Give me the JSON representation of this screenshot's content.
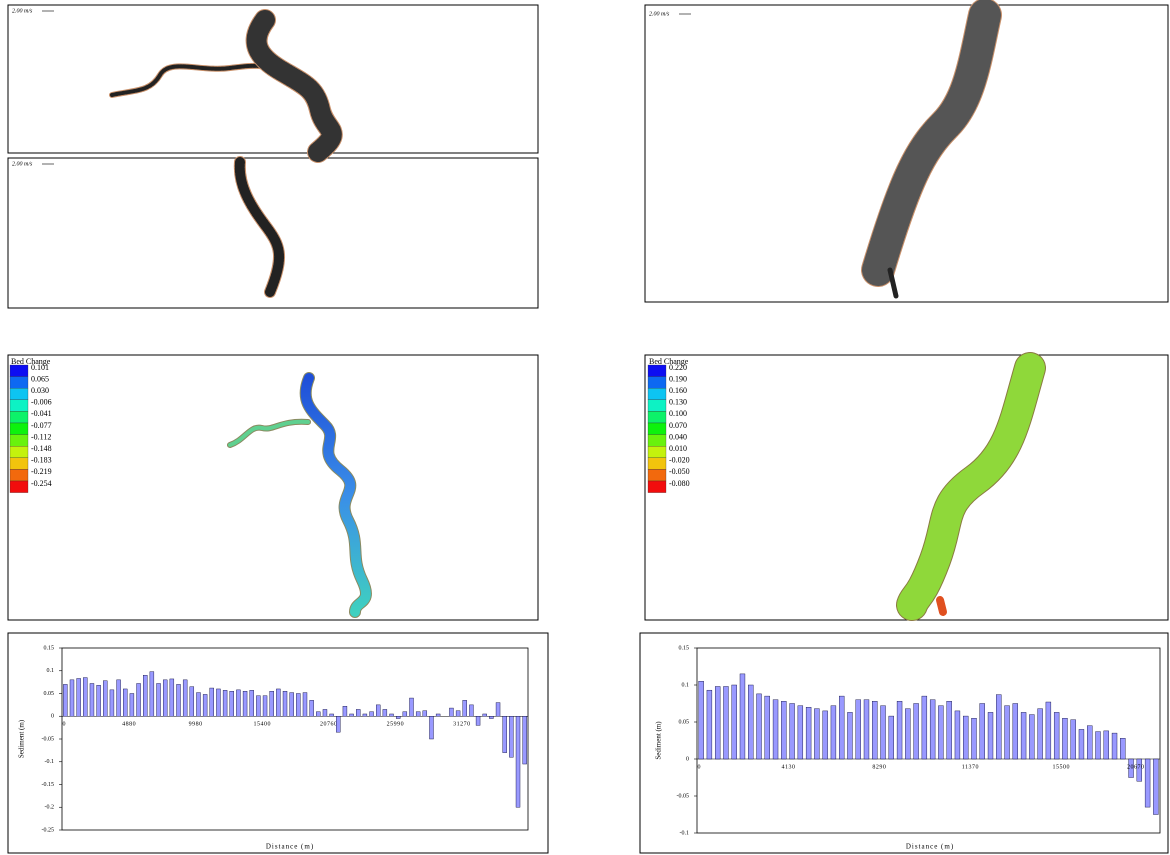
{
  "velocity_labels": [
    "2.00 m/s",
    "2.00 m/s",
    "2.00 m/s"
  ],
  "bed_change": [
    {
      "title": "Bed Change",
      "levels": [
        "0.101",
        "0.065",
        "0.030",
        "-0.006",
        "-0.041",
        "-0.077",
        "-0.112",
        "-0.148",
        "-0.183",
        "-0.219",
        "-0.254"
      ]
    },
    {
      "title": "Bed Change",
      "levels": [
        "0.220",
        "0.190",
        "0.160",
        "0.130",
        "0.100",
        "0.070",
        "0.040",
        "0.010",
        "-0.020",
        "-0.050",
        "-0.080"
      ]
    }
  ],
  "chart_data": [
    {
      "type": "bar",
      "y_label": "Sediment (m)",
      "x_label": "Distance (m)",
      "color": "#9999ff",
      "categories": [
        0,
        null,
        null,
        null,
        null,
        null,
        null,
        null,
        null,
        null,
        4880,
        null,
        null,
        null,
        null,
        null,
        null,
        null,
        null,
        null,
        9980,
        null,
        null,
        null,
        null,
        null,
        null,
        null,
        null,
        null,
        15400,
        null,
        null,
        null,
        null,
        null,
        null,
        null,
        null,
        null,
        20760,
        null,
        null,
        null,
        null,
        null,
        null,
        null,
        null,
        null,
        25990,
        null,
        null,
        null,
        null,
        null,
        null,
        null,
        null,
        null,
        31270,
        null,
        null,
        null,
        null,
        null,
        null,
        null,
        null,
        null
      ],
      "values": [
        0.07,
        0.08,
        0.083,
        0.085,
        0.072,
        0.068,
        0.078,
        0.058,
        0.08,
        0.06,
        0.05,
        0.072,
        0.09,
        0.098,
        0.072,
        0.08,
        0.082,
        0.07,
        0.08,
        0.065,
        0.052,
        0.048,
        0.062,
        0.06,
        0.057,
        0.055,
        0.058,
        0.055,
        0.057,
        0.045,
        0.045,
        0.055,
        0.06,
        0.055,
        0.052,
        0.05,
        0.052,
        0.035,
        0.01,
        0.015,
        0.005,
        -0.035,
        0.022,
        0.005,
        0.015,
        0.005,
        0.01,
        0.025,
        0.015,
        0.005,
        -0.005,
        0.01,
        0.04,
        0.01,
        0.012,
        -0.05,
        0.005,
        0,
        0.018,
        0.012,
        0.035,
        0.025,
        -0.02,
        0.005,
        -0.005,
        0.03,
        -0.08,
        -0.09,
        -0.2,
        -0.105
      ],
      "ylim": [
        -0.25,
        0.15
      ],
      "yticks": [
        0.15,
        0.1,
        0.05,
        0,
        -0.05,
        -0.1,
        -0.15,
        -0.2,
        -0.25
      ]
    },
    {
      "type": "bar",
      "y_label": "Sediment (m)",
      "x_label": "Distance (m)",
      "color": "#9999ff",
      "categories": [
        0,
        null,
        null,
        null,
        null,
        null,
        null,
        null,
        null,
        null,
        null,
        4130,
        null,
        null,
        null,
        null,
        null,
        null,
        null,
        null,
        null,
        null,
        8290,
        null,
        null,
        null,
        null,
        null,
        null,
        null,
        null,
        null,
        null,
        11370,
        null,
        null,
        null,
        null,
        null,
        null,
        null,
        null,
        null,
        null,
        15500,
        null,
        null,
        null,
        null,
        null,
        null,
        null,
        null,
        20670,
        null,
        null
      ],
      "values": [
        0.105,
        0.093,
        0.098,
        0.098,
        0.1,
        0.115,
        0.1,
        0.088,
        0.085,
        0.08,
        0.078,
        0.075,
        0.072,
        0.07,
        0.068,
        0.065,
        0.072,
        0.085,
        0.063,
        0.08,
        0.08,
        0.078,
        0.072,
        0.058,
        0.078,
        0.068,
        0.075,
        0.085,
        0.08,
        0.072,
        0.078,
        0.065,
        0.058,
        0.055,
        0.075,
        0.063,
        0.087,
        0.072,
        0.075,
        0.063,
        0.06,
        0.068,
        0.077,
        0.063,
        0.055,
        0.053,
        0.04,
        0.045,
        0.037,
        0.038,
        0.035,
        0.028,
        -0.025,
        -0.03,
        -0.065,
        -0.075
      ],
      "ylim": [
        -0.1,
        0.15
      ],
      "yticks": [
        0.15,
        0.1,
        0.05,
        0,
        -0.05,
        -0.1
      ]
    }
  ]
}
